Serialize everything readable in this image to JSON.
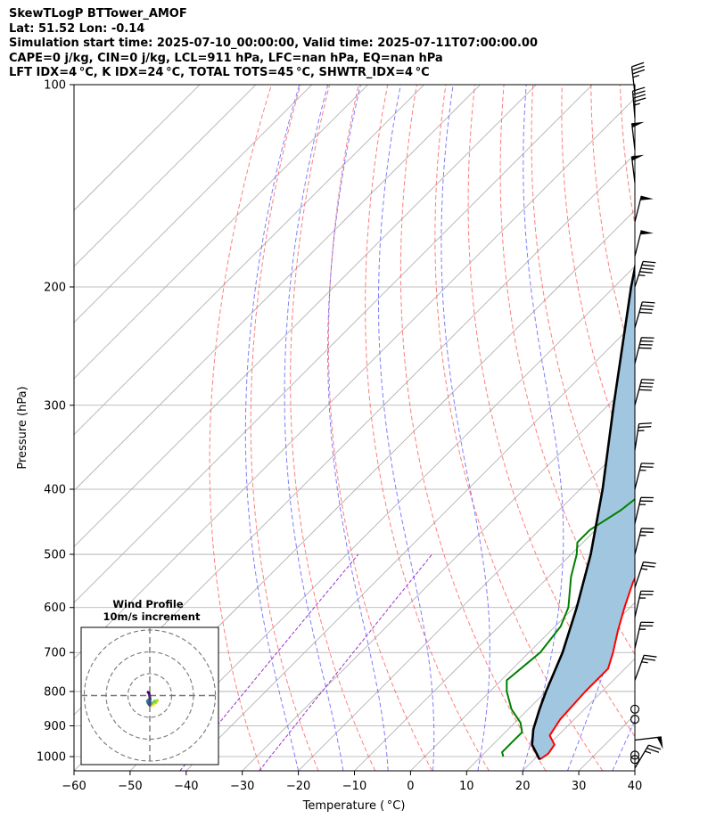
{
  "header": {
    "line1": "SkewTLogP BTTower_AMOF",
    "line2": "Lat: 51.52   Lon: -0.14",
    "line3": "Simulation start time: 2025-07-10_00:00:00, Valid time: 2025-07-11T07:00:00.00",
    "line4": "CAPE=0 j/kg, CIN=0 j/kg, LCL=911 hPa, LFC=nan hPa, EQ=nan hPa",
    "line5": "LFT IDX=4 °C, K IDX=24 °C, TOTAL TOTS=45 °C, SHWTR_IDX=4 °C"
  },
  "chart_data": {
    "type": "line",
    "subtype": "skew-t log-p",
    "xlabel": "Temperature ( °C)",
    "ylabel": "Pressure (hPa)",
    "xlim": [
      -60,
      40
    ],
    "ylim_pressure": [
      1050,
      100
    ],
    "x_ticks": [
      -60,
      -50,
      -40,
      -30,
      -20,
      -10,
      0,
      10,
      20,
      30,
      40
    ],
    "x_tick_labels": [
      "−60",
      "−50",
      "−40",
      "−30",
      "−20",
      "−10",
      "0",
      "10",
      "20",
      "30",
      "40"
    ],
    "y_ticks": [
      1000,
      900,
      800,
      700,
      600,
      500,
      400,
      300,
      200,
      100
    ],
    "y_tick_labels": [
      "1000",
      "900",
      "800",
      "700",
      "600",
      "500",
      "400",
      "300",
      "200",
      "100"
    ],
    "grid": true,
    "series": [
      {
        "role": "temperature",
        "color": "#ff0000",
        "points": [
          [
            1010,
            21
          ],
          [
            990,
            21.5
          ],
          [
            960,
            21
          ],
          [
            930,
            18.5
          ],
          [
            880,
            17.5
          ],
          [
            800,
            17
          ],
          [
            740,
            17
          ],
          [
            700,
            15
          ],
          [
            650,
            12
          ],
          [
            600,
            9
          ],
          [
            550,
            6
          ],
          [
            500,
            3.5
          ],
          [
            450,
            1
          ],
          [
            400,
            -2
          ],
          [
            360,
            -5
          ],
          [
            330,
            -6
          ],
          [
            300,
            -7.5
          ],
          [
            270,
            -10
          ],
          [
            240,
            -13
          ],
          [
            210,
            -16
          ],
          [
            190,
            -18
          ],
          [
            175,
            -18
          ],
          [
            160,
            -17.5
          ],
          [
            145,
            -17
          ],
          [
            130,
            -15
          ],
          [
            115,
            -11
          ],
          [
            100,
            -7
          ]
        ]
      },
      {
        "role": "dewpoint",
        "color": "#008000",
        "points": [
          [
            1000,
            14
          ],
          [
            985,
            13
          ],
          [
            950,
            13
          ],
          [
            920,
            13
          ],
          [
            890,
            11
          ],
          [
            850,
            7
          ],
          [
            800,
            3
          ],
          [
            770,
            1
          ],
          [
            700,
            2
          ],
          [
            640,
            1
          ],
          [
            600,
            -1
          ],
          [
            540,
            -6
          ],
          [
            500,
            -9
          ],
          [
            480,
            -11
          ],
          [
            460,
            -11
          ],
          [
            430,
            -9
          ],
          [
            400,
            -8
          ],
          [
            380,
            -9
          ],
          [
            360,
            -11
          ],
          [
            345,
            -13
          ],
          [
            325,
            -18
          ],
          [
            310,
            -19
          ],
          [
            295,
            -18
          ],
          [
            275,
            -20
          ],
          [
            250,
            -22
          ],
          [
            220,
            -23
          ],
          [
            200,
            -23.5
          ],
          [
            185,
            -24
          ],
          [
            170,
            -23
          ],
          [
            160,
            -25
          ],
          [
            145,
            -29
          ],
          [
            125,
            -32
          ],
          [
            100,
            -18
          ]
        ]
      },
      {
        "role": "parcel",
        "color": "#000000",
        "points": [
          [
            1010,
            21
          ],
          [
            960,
            17
          ],
          [
            911,
            14.5
          ],
          [
            850,
            12
          ],
          [
            800,
            10
          ],
          [
            700,
            6
          ],
          [
            600,
            0.5
          ],
          [
            500,
            -6.5
          ],
          [
            400,
            -16
          ],
          [
            300,
            -29
          ],
          [
            200,
            -47
          ],
          [
            150,
            -59
          ],
          [
            100,
            -78
          ]
        ]
      }
    ],
    "shaded_region": {
      "between": [
        "parcel",
        "temperature"
      ],
      "color": "#a1c6e0"
    },
    "reference_lines": {
      "isotherms_color": "#aaaaaa",
      "dry_adiabats_color": "#ff6666",
      "moist_adiabats_color": "#6666ff",
      "mixing_ratio_color": "#9933cc"
    },
    "wind_barbs": [
      {
        "p": 1040,
        "u": 6,
        "v": 10
      },
      {
        "p": 1010,
        "u": -1,
        "v": 2
      },
      {
        "p": 995,
        "u": -1,
        "v": 2
      },
      {
        "p": 880,
        "u": 0,
        "v": 0
      },
      {
        "p": 945,
        "u": 25,
        "v": 3
      },
      {
        "p": 850,
        "u": 0,
        "v": 0
      },
      {
        "p": 770,
        "u": 4,
        "v": 11
      },
      {
        "p": 690,
        "u": 3,
        "v": 13
      },
      {
        "p": 620,
        "u": 3,
        "v": 13
      },
      {
        "p": 560,
        "u": 4,
        "v": 12
      },
      {
        "p": 500,
        "u": 3,
        "v": 12
      },
      {
        "p": 450,
        "u": 3,
        "v": 13
      },
      {
        "p": 400,
        "u": 3,
        "v": 12
      },
      {
        "p": 350,
        "u": 2,
        "v": 13
      },
      {
        "p": 300,
        "u": 5,
        "v": 19
      },
      {
        "p": 260,
        "u": 5,
        "v": 20
      },
      {
        "p": 230,
        "u": 6,
        "v": 21
      },
      {
        "p": 200,
        "u": 7,
        "v": 22
      },
      {
        "p": 180,
        "u": 6,
        "v": 24
      },
      {
        "p": 160,
        "u": 6,
        "v": 24
      },
      {
        "p": 140,
        "u": -3,
        "v": 25
      },
      {
        "p": 125,
        "u": -3,
        "v": 26
      },
      {
        "p": 112,
        "u": -2,
        "v": 24
      },
      {
        "p": 103,
        "u": -2,
        "v": 17
      }
    ],
    "hodograph": {
      "title": "Wind Profile",
      "subtitle": "10m/s increment",
      "rings_ms": [
        10,
        20,
        30
      ],
      "points": [
        [
          0.6,
          -4.8
        ],
        [
          1.5,
          -4.2
        ],
        [
          2.8,
          -3.3
        ],
        [
          3.5,
          -2.2
        ],
        [
          2.2,
          -2.6
        ],
        [
          1.0,
          -3.6
        ],
        [
          0.3,
          -3.8
        ],
        [
          -0.4,
          -3.4
        ],
        [
          -0.7,
          -2.2
        ],
        [
          -0.3,
          -1.8
        ],
        [
          -1.1,
          -2.6
        ],
        [
          -0.8,
          -3.5
        ],
        [
          -0.2,
          -4.2
        ],
        [
          0.0,
          -4.4
        ],
        [
          0.1,
          -1.5
        ],
        [
          -0.1,
          0.0
        ],
        [
          -0.4,
          1.2
        ],
        [
          -0.8,
          1.5
        ]
      ]
    }
  }
}
